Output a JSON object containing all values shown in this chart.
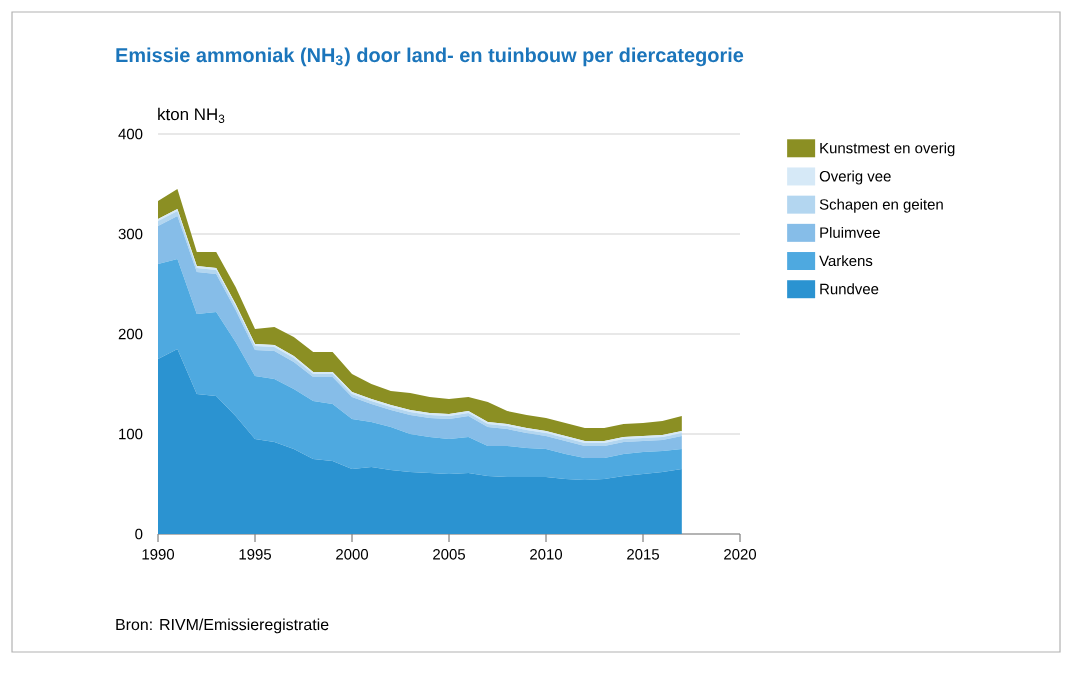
{
  "chart_data": {
    "type": "area",
    "stacked": true,
    "title": "Emissie ammoniak (NH$_{3}$) door land- en tuinbouw per diercategorie",
    "ylabel": "kton NH$_{3}$",
    "annotations": [
      "Bron: RIVM/Emissieregistratie"
    ],
    "x": [
      1990,
      1991,
      1992,
      1993,
      1994,
      1995,
      1996,
      1997,
      1998,
      1999,
      2000,
      2001,
      2002,
      2003,
      2004,
      2005,
      2006,
      2007,
      2008,
      2009,
      2010,
      2011,
      2012,
      2013,
      2014,
      2015,
      2016,
      2017
    ],
    "series": [
      {
        "name": "Rundvee",
        "color": "#2b93d1",
        "values": [
          175,
          185,
          140,
          138,
          118,
          95,
          92,
          85,
          75,
          73,
          65,
          67,
          64,
          62,
          61,
          60,
          61,
          58,
          57,
          57,
          57,
          55,
          54,
          55,
          58,
          60,
          62,
          65
        ]
      },
      {
        "name": "Varkens",
        "color": "#4ea9e0",
        "values": [
          95,
          90,
          80,
          84,
          74,
          63,
          63,
          60,
          58,
          57,
          50,
          45,
          43,
          38,
          36,
          35,
          36,
          30,
          31,
          29,
          28,
          25,
          22,
          21,
          22,
          22,
          21,
          20
        ]
      },
      {
        "name": "Pluimvee",
        "color": "#86bde8",
        "values": [
          38,
          43,
          42,
          38,
          32,
          26,
          28,
          27,
          24,
          27,
          22,
          18,
          17,
          19,
          19,
          20,
          21,
          19,
          17,
          15,
          13,
          13,
          12,
          12,
          12,
          11,
          11,
          13
        ]
      },
      {
        "name": "Schapen en geiten",
        "color": "#b3d6f0",
        "values": [
          5,
          5,
          4,
          4,
          4,
          4,
          4,
          4,
          3,
          3,
          3,
          3,
          3,
          3,
          3,
          3,
          3,
          3,
          3,
          3,
          3,
          3,
          3,
          3,
          3,
          3,
          3,
          3
        ]
      },
      {
        "name": "Overig vee",
        "color": "#d6e9f7",
        "values": [
          2,
          2,
          2,
          2,
          2,
          2,
          2,
          2,
          2,
          2,
          2,
          2,
          2,
          2,
          2,
          2,
          2,
          2,
          2,
          2,
          2,
          2,
          2,
          2,
          2,
          2,
          2,
          2
        ]
      },
      {
        "name": "Kunstmest en overig",
        "color": "#8b8f23",
        "values": [
          18,
          20,
          14,
          16,
          17,
          15,
          18,
          19,
          20,
          20,
          18,
          15,
          14,
          17,
          16,
          15,
          14,
          20,
          13,
          13,
          13,
          13,
          13,
          13,
          13,
          13,
          14,
          15
        ]
      }
    ],
    "xlim": [
      1990,
      2020
    ],
    "xticks": [
      1990,
      1995,
      2000,
      2005,
      2010,
      2015,
      2020
    ],
    "ylim": [
      0,
      400
    ],
    "yticks": [
      0,
      100,
      200,
      300,
      400
    ],
    "grid": "y",
    "legend": "right"
  }
}
